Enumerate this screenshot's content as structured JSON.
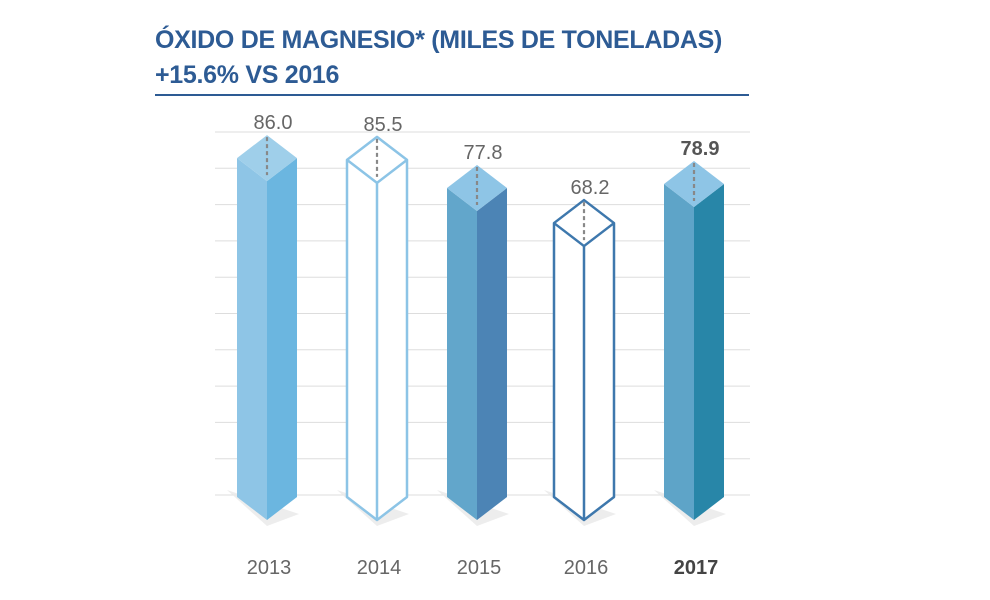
{
  "header": {
    "title": "ÓXIDO DE MAGNESIO* (MILES DE TONELADAS)",
    "subtitle": "+15.6% VS 2016"
  },
  "chart_data": {
    "type": "bar",
    "title": "ÓXIDO DE MAGNESIO* (MILES DE TONELADAS)",
    "subtitle": "+15.6% VS 2016",
    "categories": [
      "2013",
      "2014",
      "2015",
      "2016",
      "2017"
    ],
    "values": [
      86.0,
      85.5,
      77.8,
      68.2,
      78.9
    ],
    "value_labels": [
      "86.0",
      "85.5",
      "77.8",
      "68.2",
      "78.9"
    ],
    "highlight_index": 4,
    "grid": true,
    "legend": "none",
    "styles": [
      {
        "fill": true,
        "front": "#8ec5e6",
        "side": "#6bb6e0",
        "top": "#9fcfea"
      },
      {
        "fill": false,
        "stroke": "#8cc4e6"
      },
      {
        "fill": true,
        "front": "#62a6cb",
        "side": "#4c84b5",
        "top": "#8ec5e6"
      },
      {
        "fill": false,
        "stroke": "#3e78ad"
      },
      {
        "fill": true,
        "front": "#5ea4c8",
        "side": "#2886a8",
        "top": "#8ec5e6"
      }
    ],
    "colors": {
      "title": "#2d5b94",
      "grid": "#dddddd",
      "label": "#666666"
    }
  }
}
